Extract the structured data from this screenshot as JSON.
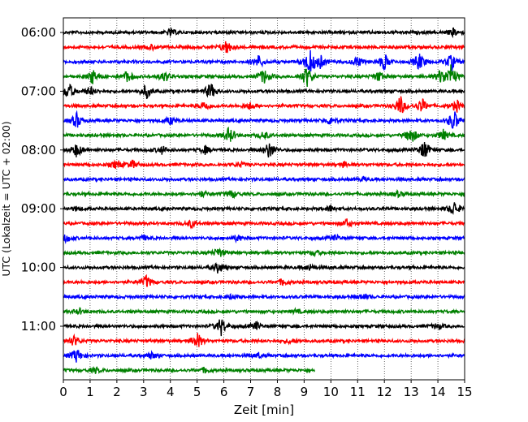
{
  "chart_data": {
    "type": "line",
    "title": "",
    "xlabel": "Zeit  [min]",
    "ylabel": "UTC (Lokalzeit = UTC + 02:00)",
    "xlim": [
      0,
      15
    ],
    "x_ticks": [
      "0",
      "1",
      "2",
      "3",
      "4",
      "5",
      "6",
      "7",
      "8",
      "9",
      "10",
      "11",
      "12",
      "13",
      "14",
      "15"
    ],
    "y_ticks": [
      "06:00",
      "07:00",
      "08:00",
      "09:00",
      "10:00",
      "11:00"
    ],
    "grid": "vertical-dotted",
    "traces_per_hour": 4,
    "minutes_per_trace": 15,
    "last_trace_end_min": 9.4,
    "colors": [
      "#000000",
      "#ff0000",
      "#0000ff",
      "#008000"
    ],
    "series": [
      {
        "start": "06:00",
        "events": [
          [
            4.0,
            0.5
          ],
          [
            14.6,
            0.6
          ]
        ]
      },
      {
        "start": "06:15",
        "events": [
          [
            6.1,
            1.1
          ],
          [
            3.3,
            0.4
          ]
        ]
      },
      {
        "start": "06:30",
        "events": [
          [
            7.3,
            1.0
          ],
          [
            9.2,
            2.0
          ],
          [
            9.6,
            1.0
          ],
          [
            11.0,
            0.8
          ],
          [
            12.0,
            1.3
          ],
          [
            13.3,
            1.4
          ],
          [
            14.5,
            1.3
          ]
        ]
      },
      {
        "start": "06:45",
        "events": [
          [
            1.1,
            1.1
          ],
          [
            2.4,
            0.9
          ],
          [
            3.8,
            0.8
          ],
          [
            7.5,
            1.2
          ],
          [
            9.1,
            1.7
          ],
          [
            11.8,
            0.8
          ],
          [
            14.1,
            1.0
          ],
          [
            14.5,
            1.9
          ]
        ]
      },
      {
        "start": "07:00",
        "events": [
          [
            0.2,
            1.3
          ],
          [
            1.0,
            0.7
          ],
          [
            3.1,
            1.1
          ],
          [
            5.5,
            1.3
          ]
        ]
      },
      {
        "start": "07:15",
        "events": [
          [
            5.3,
            0.8
          ],
          [
            7.0,
            0.6
          ],
          [
            12.6,
            1.6
          ],
          [
            13.4,
            1.2
          ],
          [
            14.7,
            0.9
          ]
        ]
      },
      {
        "start": "07:30",
        "events": [
          [
            0.5,
            1.2
          ],
          [
            4.0,
            0.6
          ],
          [
            10.0,
            0.7
          ],
          [
            14.6,
            1.7
          ]
        ]
      },
      {
        "start": "07:45",
        "events": [
          [
            6.2,
            1.3
          ],
          [
            7.5,
            0.6
          ],
          [
            13.0,
            1.4
          ],
          [
            14.2,
            0.8
          ]
        ]
      },
      {
        "start": "08:00",
        "events": [
          [
            0.5,
            1.1
          ],
          [
            3.7,
            0.6
          ],
          [
            5.3,
            0.6
          ],
          [
            7.7,
            1.4
          ],
          [
            13.5,
            1.5
          ]
        ]
      },
      {
        "start": "08:15",
        "events": [
          [
            2.0,
            0.7
          ],
          [
            2.6,
            0.6
          ],
          [
            6.6,
            0.4
          ],
          [
            10.5,
            0.4
          ]
        ]
      },
      {
        "start": "08:30",
        "events": [
          [
            11.2,
            0.3
          ]
        ]
      },
      {
        "start": "08:45",
        "events": [
          [
            5.2,
            0.4
          ],
          [
            6.3,
            0.6
          ],
          [
            12.5,
            0.4
          ]
        ]
      },
      {
        "start": "09:00",
        "events": [
          [
            0.5,
            0.3
          ],
          [
            10.0,
            0.5
          ],
          [
            14.6,
            1.2
          ]
        ]
      },
      {
        "start": "09:15",
        "events": [
          [
            4.8,
            0.6
          ],
          [
            10.6,
            0.6
          ]
        ]
      },
      {
        "start": "09:30",
        "events": [
          [
            0.1,
            0.6
          ],
          [
            3.0,
            0.4
          ],
          [
            6.5,
            0.5
          ],
          [
            10.2,
            0.4
          ]
        ]
      },
      {
        "start": "09:45",
        "events": [
          [
            5.8,
            0.8
          ],
          [
            9.4,
            0.4
          ]
        ]
      },
      {
        "start": "10:00",
        "events": [
          [
            5.8,
            0.9
          ],
          [
            9.2,
            0.5
          ]
        ]
      },
      {
        "start": "10:15",
        "events": [
          [
            3.1,
            1.0
          ],
          [
            8.2,
            0.5
          ]
        ]
      },
      {
        "start": "10:30",
        "events": [
          [
            6.3,
            0.4
          ],
          [
            11.2,
            0.5
          ]
        ]
      },
      {
        "start": "10:45",
        "events": [
          [
            0.6,
            0.4
          ],
          [
            8.7,
            0.3
          ]
        ]
      },
      {
        "start": "11:00",
        "events": [
          [
            5.9,
            1.4
          ],
          [
            7.2,
            0.6
          ],
          [
            14.0,
            0.5
          ]
        ]
      },
      {
        "start": "11:15",
        "events": [
          [
            0.4,
            0.8
          ],
          [
            5.0,
            1.3
          ],
          [
            8.5,
            0.4
          ]
        ]
      },
      {
        "start": "11:30",
        "events": [
          [
            0.5,
            1.1
          ],
          [
            3.3,
            0.5
          ],
          [
            7.3,
            0.4
          ]
        ]
      },
      {
        "start": "11:45",
        "events": [
          [
            1.2,
            0.4
          ],
          [
            5.3,
            0.4
          ]
        ]
      }
    ]
  }
}
